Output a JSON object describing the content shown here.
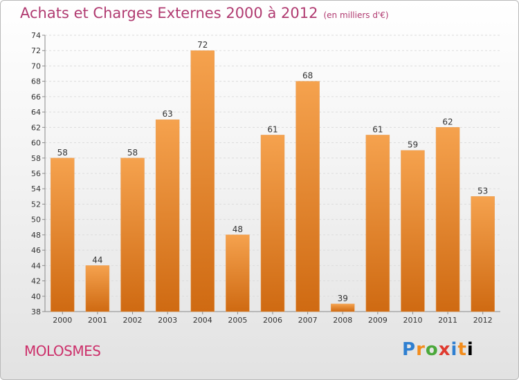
{
  "header": {
    "title": "Achats et Charges Externes 2000 à 2012",
    "unit": "(en milliers d'€)"
  },
  "footer": {
    "town": "MOLOSMES",
    "logo": "Proxiti"
  },
  "colors": {
    "bar_light": "#f5a24e",
    "bar_dark": "#cf6a12",
    "title": "#b03a70",
    "town": "#cc2f6a"
  },
  "chart_data": {
    "type": "bar",
    "categories": [
      "2000",
      "2001",
      "2002",
      "2003",
      "2004",
      "2005",
      "2006",
      "2007",
      "2008",
      "2009",
      "2010",
      "2011",
      "2012"
    ],
    "values": [
      58,
      44,
      58,
      63,
      72,
      48,
      61,
      68,
      39,
      61,
      59,
      62,
      53
    ],
    "ylim": [
      38,
      74
    ],
    "yticks": [
      38,
      40,
      42,
      44,
      46,
      48,
      50,
      52,
      54,
      56,
      58,
      60,
      62,
      64,
      66,
      68,
      70,
      72,
      74
    ],
    "grid": true
  }
}
